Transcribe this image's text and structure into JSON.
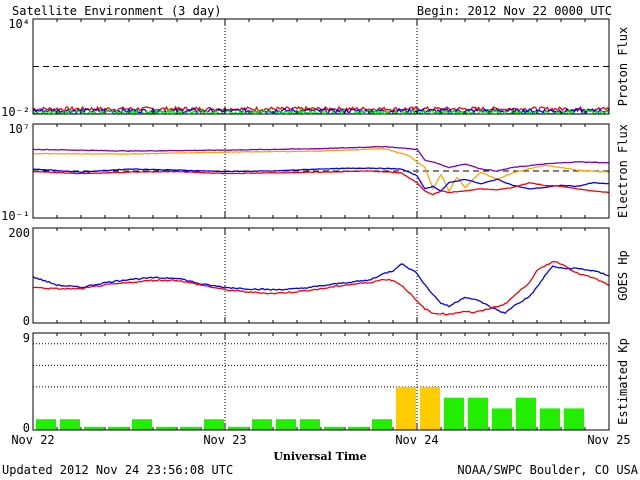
{
  "header": {
    "title": "Satellite Environment (3 day)",
    "begin": "Begin:  2012 Nov 22 0000 UTC"
  },
  "footer": {
    "updated": "Updated 2012 Nov 24 23:56:08 UTC",
    "credit": "NOAA/SWPC Boulder, CO USA",
    "xlabel": "Universal Time"
  },
  "colors": {
    "red": "#ff0000",
    "blue": "#0000ff",
    "green": "#00ee00",
    "orange": "#ffa500",
    "purple": "#8000c0",
    "yellow": "#ffcc00",
    "kp_green": "#22ee00"
  },
  "chart_data": [
    {
      "type": "line",
      "name": "proton",
      "ylabel": "Proton Flux",
      "yscale": "log",
      "ylim": [
        0.01,
        10000
      ],
      "yticks": [
        "10⁴",
        "10⁻²"
      ],
      "x_range": [
        0,
        72
      ],
      "threshold": 10,
      "series": [
        {
          "color": "red",
          "base": 0.021,
          "noise": 0.25
        },
        {
          "color": "blue",
          "base": 0.016,
          "noise": 0.25
        },
        {
          "color": "green",
          "base": 0.012,
          "noise": 0.3
        }
      ]
    },
    {
      "type": "line",
      "name": "electron",
      "ylabel": "Electron Flux",
      "yscale": "log",
      "ylim": [
        0.1,
        10000000
      ],
      "yticks": [
        "10⁷",
        "10⁻¹"
      ],
      "x_range": [
        0,
        72
      ],
      "threshold": 1000,
      "series": [
        {
          "color": "purple",
          "x": [
            0,
            12,
            24,
            36,
            44,
            48,
            49,
            50,
            52,
            54,
            56,
            58,
            60,
            64,
            68,
            72
          ],
          "y": [
            70000,
            50000,
            60000,
            80000,
            120000,
            70000,
            8000,
            6000,
            2000,
            4000,
            1500,
            1000,
            2000,
            4000,
            6000,
            5000
          ]
        },
        {
          "color": "orange",
          "x": [
            0,
            12,
            24,
            36,
            44,
            47,
            49,
            50,
            51,
            52,
            53,
            54,
            55,
            56,
            58,
            60,
            62,
            64,
            66,
            68,
            72
          ],
          "y": [
            30000,
            28000,
            40000,
            50000,
            80000,
            20000,
            2000,
            30,
            500,
            20,
            300,
            40,
            200,
            800,
            200,
            700,
            1500,
            3000,
            2000,
            1200,
            800
          ]
        },
        {
          "color": "blue",
          "x": [
            0,
            6,
            12,
            18,
            24,
            30,
            36,
            42,
            46,
            48,
            49,
            50,
            51,
            52,
            54,
            56,
            58,
            60,
            62,
            64,
            66,
            68,
            70,
            72
          ],
          "y": [
            1500,
            800,
            1500,
            1200,
            900,
            1000,
            1500,
            1800,
            1500,
            400,
            30,
            50,
            20,
            100,
            200,
            80,
            200,
            60,
            30,
            40,
            60,
            50,
            100,
            80
          ]
        },
        {
          "color": "red",
          "x": [
            0,
            6,
            12,
            18,
            24,
            30,
            36,
            42,
            46,
            48,
            49,
            50,
            51,
            52,
            54,
            56,
            58,
            60,
            62,
            64,
            66,
            68,
            70,
            72
          ],
          "y": [
            900,
            600,
            800,
            900,
            600,
            700,
            800,
            1000,
            700,
            100,
            20,
            10,
            20,
            15,
            20,
            30,
            25,
            40,
            100,
            60,
            50,
            30,
            20,
            15
          ]
        }
      ]
    },
    {
      "type": "line",
      "name": "hp",
      "ylabel": "GOES Hp",
      "yscale": "linear",
      "ylim": [
        0,
        200
      ],
      "yticks": [
        "200",
        "0"
      ],
      "x_range": [
        0,
        72
      ],
      "series": [
        {
          "color": "blue",
          "x": [
            0,
            3,
            6,
            9,
            12,
            15,
            18,
            21,
            24,
            27,
            30,
            33,
            36,
            39,
            42,
            44,
            45,
            46,
            47,
            48,
            49,
            50,
            51,
            52,
            53,
            54,
            55,
            56,
            57,
            58,
            59,
            60,
            62,
            63,
            64,
            65,
            66,
            68,
            70,
            72
          ],
          "y": [
            97,
            80,
            75,
            85,
            92,
            95,
            95,
            82,
            75,
            72,
            70,
            72,
            78,
            85,
            90,
            105,
            110,
            125,
            115,
            105,
            80,
            60,
            42,
            35,
            45,
            55,
            50,
            45,
            35,
            28,
            20,
            35,
            55,
            75,
            100,
            120,
            115,
            115,
            110,
            100
          ]
        },
        {
          "color": "red",
          "x": [
            0,
            3,
            6,
            9,
            12,
            15,
            18,
            21,
            24,
            27,
            30,
            33,
            36,
            39,
            42,
            44,
            45,
            46,
            47,
            48,
            49,
            50,
            51,
            52,
            53,
            54,
            55,
            56,
            57,
            58,
            59,
            60,
            62,
            63,
            64,
            65,
            66,
            68,
            70,
            72
          ],
          "y": [
            75,
            72,
            72,
            80,
            85,
            90,
            90,
            80,
            70,
            65,
            62,
            66,
            72,
            80,
            85,
            92,
            90,
            80,
            65,
            45,
            30,
            20,
            20,
            18,
            22,
            25,
            22,
            25,
            30,
            35,
            40,
            55,
            85,
            110,
            120,
            130,
            125,
            105,
            95,
            80
          ]
        }
      ]
    },
    {
      "type": "bar",
      "name": "kp",
      "ylabel": "Estimated Kp",
      "yscale": "linear",
      "ylim": [
        0,
        9
      ],
      "yticks": [
        "9",
        "0"
      ],
      "x_range": [
        0,
        72
      ],
      "values": [
        1,
        1,
        0.3,
        0.3,
        1,
        0.3,
        0.3,
        1,
        0.3,
        1,
        1,
        1,
        0.3,
        0.3,
        1,
        4,
        4,
        3,
        3,
        2,
        3,
        2,
        2
      ],
      "colors": [
        "kp_green",
        "kp_green",
        "kp_green",
        "kp_green",
        "kp_green",
        "kp_green",
        "kp_green",
        "kp_green",
        "kp_green",
        "kp_green",
        "kp_green",
        "kp_green",
        "kp_green",
        "kp_green",
        "kp_green",
        "yellow",
        "yellow",
        "kp_green",
        "kp_green",
        "kp_green",
        "kp_green",
        "kp_green",
        "kp_green"
      ]
    }
  ],
  "x_ticks": [
    {
      "hour": 0,
      "label": "Nov 22"
    },
    {
      "hour": 24,
      "label": "Nov 23"
    },
    {
      "hour": 48,
      "label": "Nov 24"
    },
    {
      "hour": 72,
      "label": "Nov 25"
    }
  ]
}
